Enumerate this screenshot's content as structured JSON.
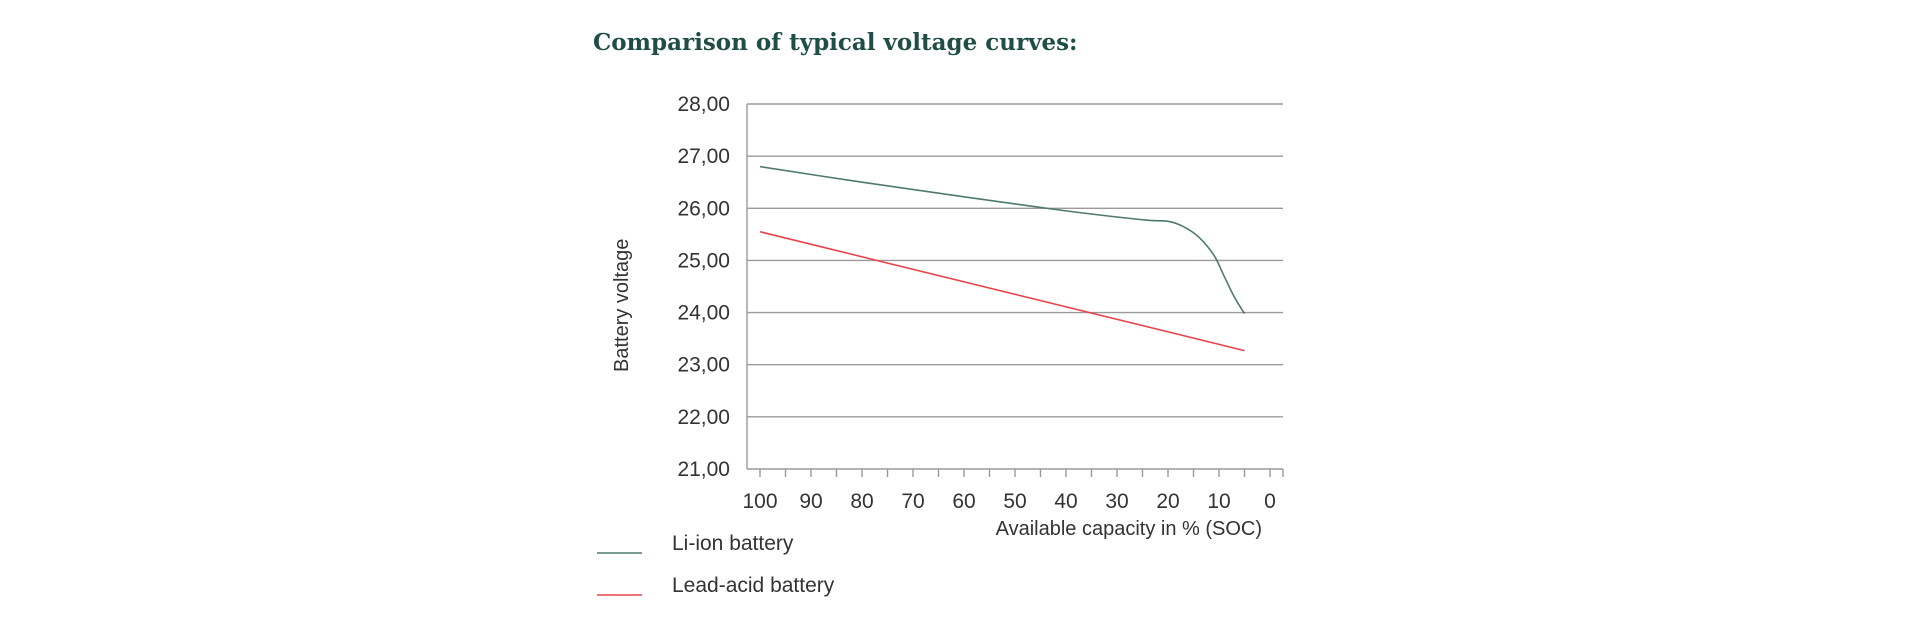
{
  "chart_data": {
    "type": "line",
    "title": "Comparison of typical voltage curves:",
    "xlabel": "Available capacity in % (SOC)",
    "ylabel": "Battery voltage",
    "xlim": [
      100,
      0
    ],
    "ylim": [
      21,
      28
    ],
    "x_ticks": [
      "100",
      "90",
      "80",
      "70",
      "60",
      "50",
      "40",
      "30",
      "20",
      "10",
      "0"
    ],
    "y_ticks": [
      "28,00",
      "27,00",
      "26,00",
      "25,00",
      "24,00",
      "23,00",
      "22,00",
      "21,00"
    ],
    "grid": true,
    "legend_position": "bottom-left",
    "series": [
      {
        "name": "Li-ion battery",
        "color": "#4f7a6a",
        "x": [
          100,
          80,
          60,
          40,
          25,
          20,
          17,
          14,
          11,
          9,
          7,
          5
        ],
        "y": [
          26.8,
          26.5,
          26.22,
          25.95,
          25.78,
          25.75,
          25.65,
          25.45,
          25.1,
          24.7,
          24.3,
          23.98
        ]
      },
      {
        "name": "Lead-acid battery",
        "color": "#e8454a",
        "x": [
          100,
          5
        ],
        "y": [
          25.55,
          23.27
        ]
      }
    ]
  }
}
